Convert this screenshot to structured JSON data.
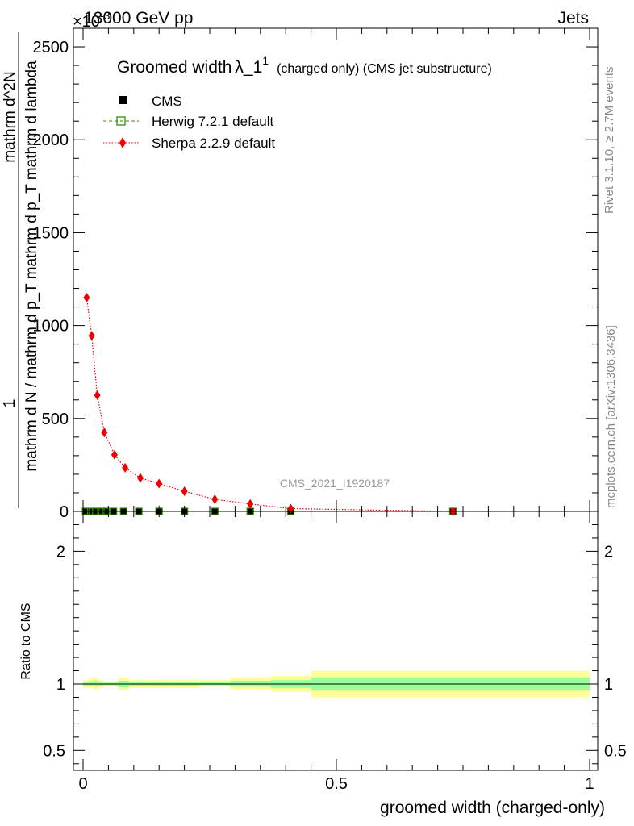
{
  "header": {
    "energy_label": "13000 GeV pp",
    "process_label": "Jets",
    "exponent_label": "×10",
    "exponent_sup": "-3"
  },
  "side_labels": {
    "rivet": "Rivet 3.1.10, ≥ 2.7M events",
    "mcplots": "mcplots.cern.ch [arXiv:1306.3436]"
  },
  "watermark": "CMS_2021_I1920187",
  "colors": {
    "cms": "#000000",
    "herwig": "#2e8b00",
    "sherpa": "#ee0000",
    "band_outer": "#ffff99",
    "band_inner": "#99ff99"
  },
  "chart_data": [
    {
      "type": "line",
      "title": "Groomed width",
      "title_symbol": "λ_1",
      "title_sup": "1",
      "title_suffix": "(charged only) (CMS jet substructure)",
      "xlabel": "",
      "ylabel_numerator": "1",
      "ylabel_denominator": "mathrm d N / mathrm d p_T mathrm d p_T mathrm d lambda",
      "ylabel_text": "mathrm d^2N",
      "xlim": [
        -0.02,
        1.02
      ],
      "ylim": [
        0,
        2600
      ],
      "y_ticks": [
        0,
        500,
        1000,
        1500,
        2000,
        2500
      ],
      "y_tick_labels": [
        "0",
        "500",
        "1000",
        "1500",
        "2000",
        "2500"
      ],
      "legend": [
        "CMS",
        "Herwig 7.2.1 default",
        "Sherpa 2.2.9 default"
      ],
      "series": [
        {
          "name": "CMS",
          "marker": "square",
          "x": [
            0.005,
            0.015,
            0.025,
            0.035,
            0.045,
            0.06,
            0.08,
            0.11,
            0.15,
            0.2,
            0.26,
            0.33,
            0.41,
            0.73
          ],
          "values": [
            0,
            0,
            0,
            0,
            0,
            0,
            0,
            0,
            0,
            0,
            0,
            0,
            0,
            0
          ]
        },
        {
          "name": "Herwig 7.2.1 default",
          "marker": "open-square",
          "x": [
            0.005,
            0.015,
            0.025,
            0.035,
            0.045,
            0.06,
            0.08,
            0.11,
            0.15,
            0.2,
            0.26,
            0.33,
            0.41,
            0.73
          ],
          "values": [
            0,
            0,
            0,
            0,
            0,
            0,
            0,
            0,
            0,
            0,
            0,
            0,
            0,
            0
          ]
        },
        {
          "name": "Sherpa 2.2.9 default",
          "marker": "diamond",
          "x": [
            0.007,
            0.017,
            0.028,
            0.042,
            0.062,
            0.083,
            0.113,
            0.15,
            0.2,
            0.26,
            0.33,
            0.41,
            0.73
          ],
          "values": [
            1150,
            945,
            625,
            425,
            305,
            235,
            180,
            150,
            108,
            65,
            40,
            15,
            0
          ]
        }
      ]
    },
    {
      "type": "area",
      "title": "",
      "xlabel": "groomed width (charged-only)",
      "ylabel": "Ratio to CMS",
      "xlim": [
        -0.02,
        1.02
      ],
      "ylim": [
        0.35,
        2.3
      ],
      "x_ticks": [
        0,
        0.5,
        1
      ],
      "x_tick_labels": [
        "0",
        "0.5",
        "1"
      ],
      "y_ticks": [
        0.5,
        1,
        2
      ],
      "y_tick_labels": [
        "0.5",
        "1",
        "2"
      ],
      "bins": {
        "edges": [
          0,
          0.01,
          0.02,
          0.03,
          0.04,
          0.05,
          0.07,
          0.09,
          0.13,
          0.17,
          0.23,
          0.29,
          0.37,
          0.45,
          1.0
        ],
        "outer_low": [
          0.97,
          0.97,
          0.96,
          0.97,
          0.98,
          0.98,
          0.95,
          0.97,
          0.97,
          0.97,
          0.98,
          0.96,
          0.94,
          0.9
        ],
        "outer_high": [
          1.03,
          1.04,
          1.05,
          1.03,
          1.02,
          1.02,
          1.05,
          1.03,
          1.03,
          1.03,
          1.03,
          1.05,
          1.06,
          1.1
        ],
        "inner_low": [
          0.985,
          0.985,
          0.98,
          0.985,
          0.99,
          0.99,
          0.975,
          0.985,
          0.985,
          0.985,
          0.99,
          0.98,
          0.97,
          0.95
        ],
        "inner_high": [
          1.015,
          1.02,
          1.025,
          1.015,
          1.01,
          1.01,
          1.025,
          1.015,
          1.015,
          1.015,
          1.015,
          1.025,
          1.03,
          1.05
        ]
      },
      "reference_line": 1
    }
  ]
}
